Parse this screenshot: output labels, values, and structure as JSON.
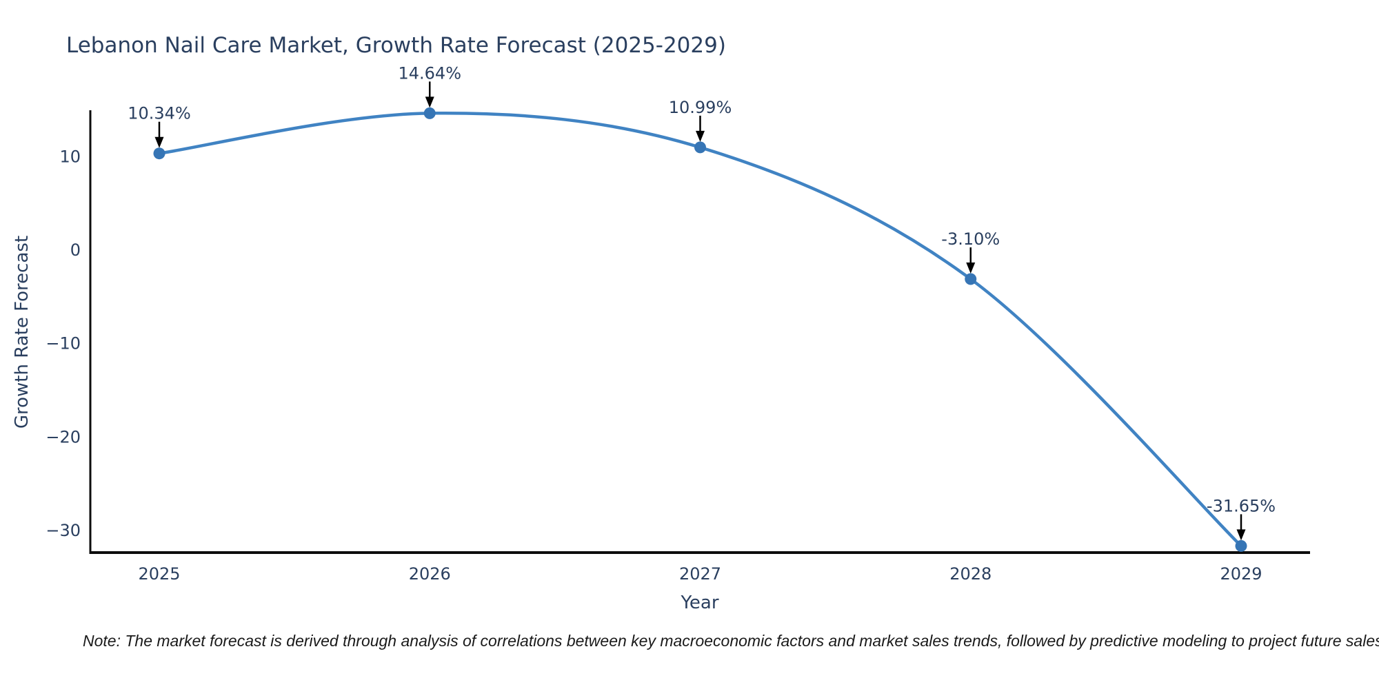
{
  "chart_data": {
    "type": "line",
    "title": "Lebanon Nail Care Market, Growth Rate Forecast (2025-2029)",
    "xlabel": "Year",
    "ylabel": "Growth Rate Forecast",
    "categories": [
      "2025",
      "2026",
      "2027",
      "2028",
      "2029"
    ],
    "series": [
      {
        "name": "Growth Rate Forecast",
        "values": [
          10.34,
          14.64,
          10.99,
          -3.1,
          -31.65
        ],
        "point_labels": [
          "10.34%",
          "14.64%",
          "10.99%",
          "-3.10%",
          "-31.65%"
        ]
      }
    ],
    "line_shape": "spline",
    "markers": true,
    "ylim": [
      -32.36,
      14.74
    ],
    "ytick_values": [
      10,
      0,
      -10,
      -20,
      -30
    ],
    "ytick_labels": [
      "10",
      "0",
      "−10",
      "−20",
      "−30"
    ],
    "grid": false,
    "legend_position": "none",
    "colors": {
      "line": "#4083c3",
      "marker": "#3675b5",
      "axis": "#0d0d0d",
      "text": "#2a3f5f",
      "annotation_arrow": "#000000",
      "background": "#ffffff"
    }
  },
  "note": {
    "text": "Note: The market forecast is derived through analysis of correlations between key macroeconomic factors and market sales trends, followed by predictive modeling to project future sales."
  }
}
